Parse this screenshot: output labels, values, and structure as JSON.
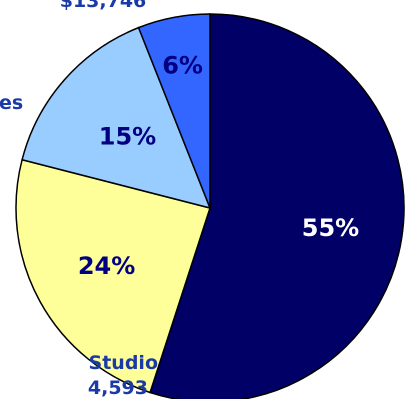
{
  "chart_data": {
    "type": "pie",
    "slices": [
      {
        "label_pct": "55%",
        "value": 55,
        "color": "#000066",
        "text_color": "#ffffff"
      },
      {
        "label_pct": "24%",
        "value": 24,
        "color": "#ffff99",
        "text_color": "#000080"
      },
      {
        "label_pct": "15%",
        "value": 15,
        "color": "#99ccff",
        "text_color": "#000080"
      },
      {
        "label_pct": "6%",
        "value": 6,
        "color": "#3366ff",
        "text_color": "#000080"
      }
    ],
    "start_angle_deg": 0,
    "direction": "clockwise",
    "external_labels": [
      {
        "text": "$13,746",
        "slice": 3
      },
      {
        "text": "es",
        "slice": 2
      },
      {
        "text": "Studio",
        "slice": 1
      },
      {
        "text": "4,593",
        "slice": 1
      }
    ]
  }
}
